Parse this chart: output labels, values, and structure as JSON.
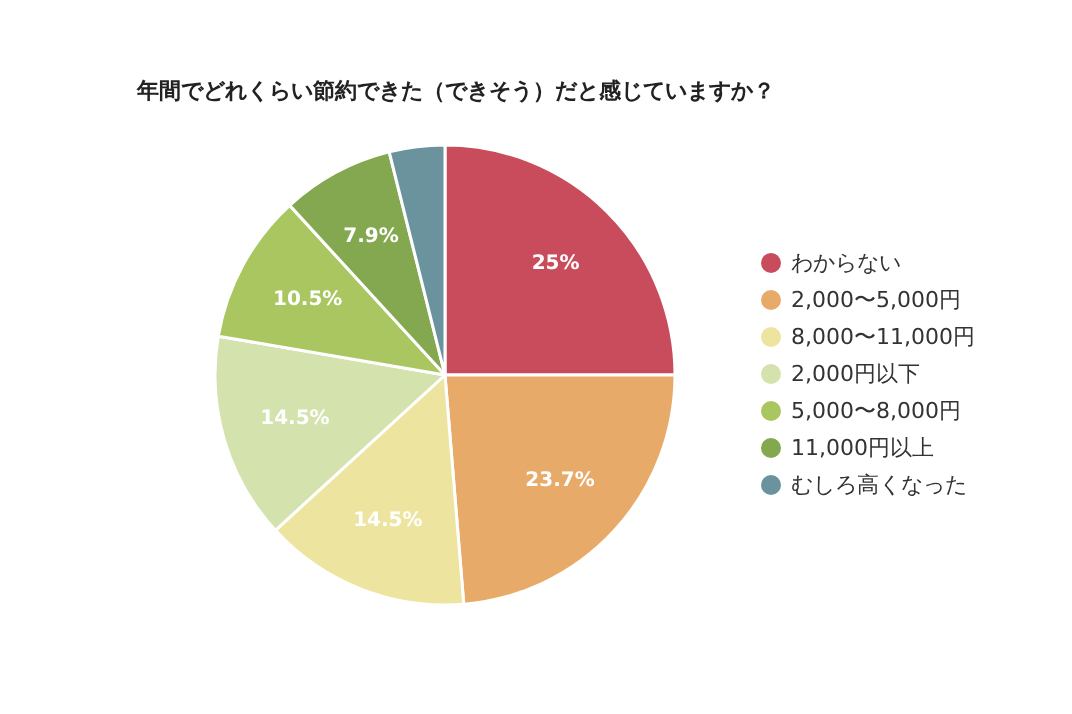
{
  "chart_data": {
    "type": "pie",
    "title": "年間でどれくらい節約できた（できそう）だと感じていますか？",
    "categories": [
      "わからない",
      "2,000〜5,000円",
      "8,000〜11,000円",
      "2,000円以下",
      "5,000〜8,000円",
      "11,000円以上",
      "むしろ高くなった"
    ],
    "values": [
      25,
      23.7,
      14.5,
      14.5,
      10.5,
      7.9,
      3.9
    ],
    "value_labels": [
      "25%",
      "23.7%",
      "14.5%",
      "14.5%",
      "10.5%",
      "7.9%",
      null
    ],
    "colors": [
      "#c94c5c",
      "#e8aa68",
      "#ede59f",
      "#d4e2ad",
      "#a9c660",
      "#84a84f",
      "#6b939e"
    ],
    "legend": "right"
  }
}
